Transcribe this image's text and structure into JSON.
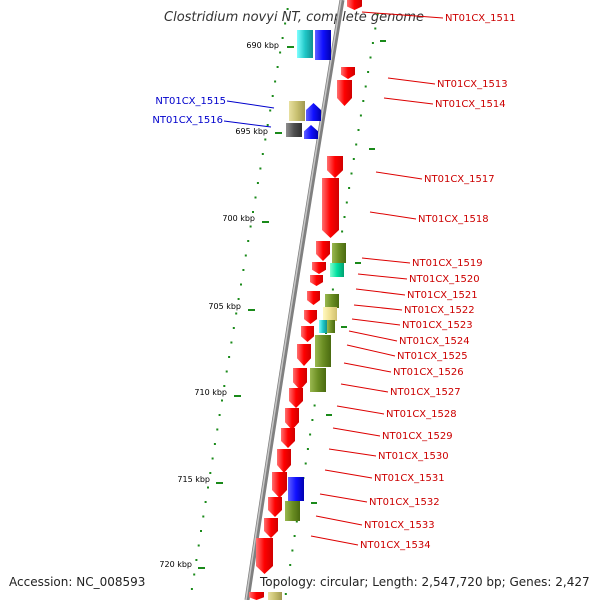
{
  "title": "Clostridium novyi NT, complete genome",
  "accession": "Accession: NC_008593",
  "topology": "Topology: circular; Length: 2,547,720 bp; Genes: 2,427",
  "colors": {
    "backbone": "#808080",
    "kbp_tick": "#1a8a1a",
    "gene_red": "#ff0000",
    "gene_blue": "#1010ff",
    "gene_cyan": "#20c8c8",
    "gene_olive": "#6b8e23",
    "gene_khaki": "#c8c070",
    "gene_tan": "#f0e090",
    "gene_dark": "#505050",
    "gene_teal": "#00e0a0",
    "label_right": "#cc0000",
    "label_left": "#0000cc"
  },
  "scale_labels": [
    "690 kbp",
    "695 kbp",
    "700 kbp",
    "705 kbp",
    "710 kbp",
    "715 kbp",
    "720 kbp"
  ],
  "gene_labels_left": [
    "NT01CX_1515",
    "NT01CX_1516"
  ],
  "gene_labels_right": [
    "NT01CX_1511",
    "NT01CX_1513",
    "NT01CX_1514",
    "NT01CX_1517",
    "NT01CX_1518",
    "NT01CX_1519",
    "NT01CX_1520",
    "NT01CX_1521",
    "NT01CX_1522",
    "NT01CX_1523",
    "NT01CX_1524",
    "NT01CX_1525",
    "NT01CX_1526",
    "NT01CX_1527",
    "NT01CX_1528",
    "NT01CX_1529",
    "NT01CX_1530",
    "NT01CX_1531",
    "NT01CX_1532",
    "NT01CX_1533",
    "NT01CX_1534"
  ]
}
